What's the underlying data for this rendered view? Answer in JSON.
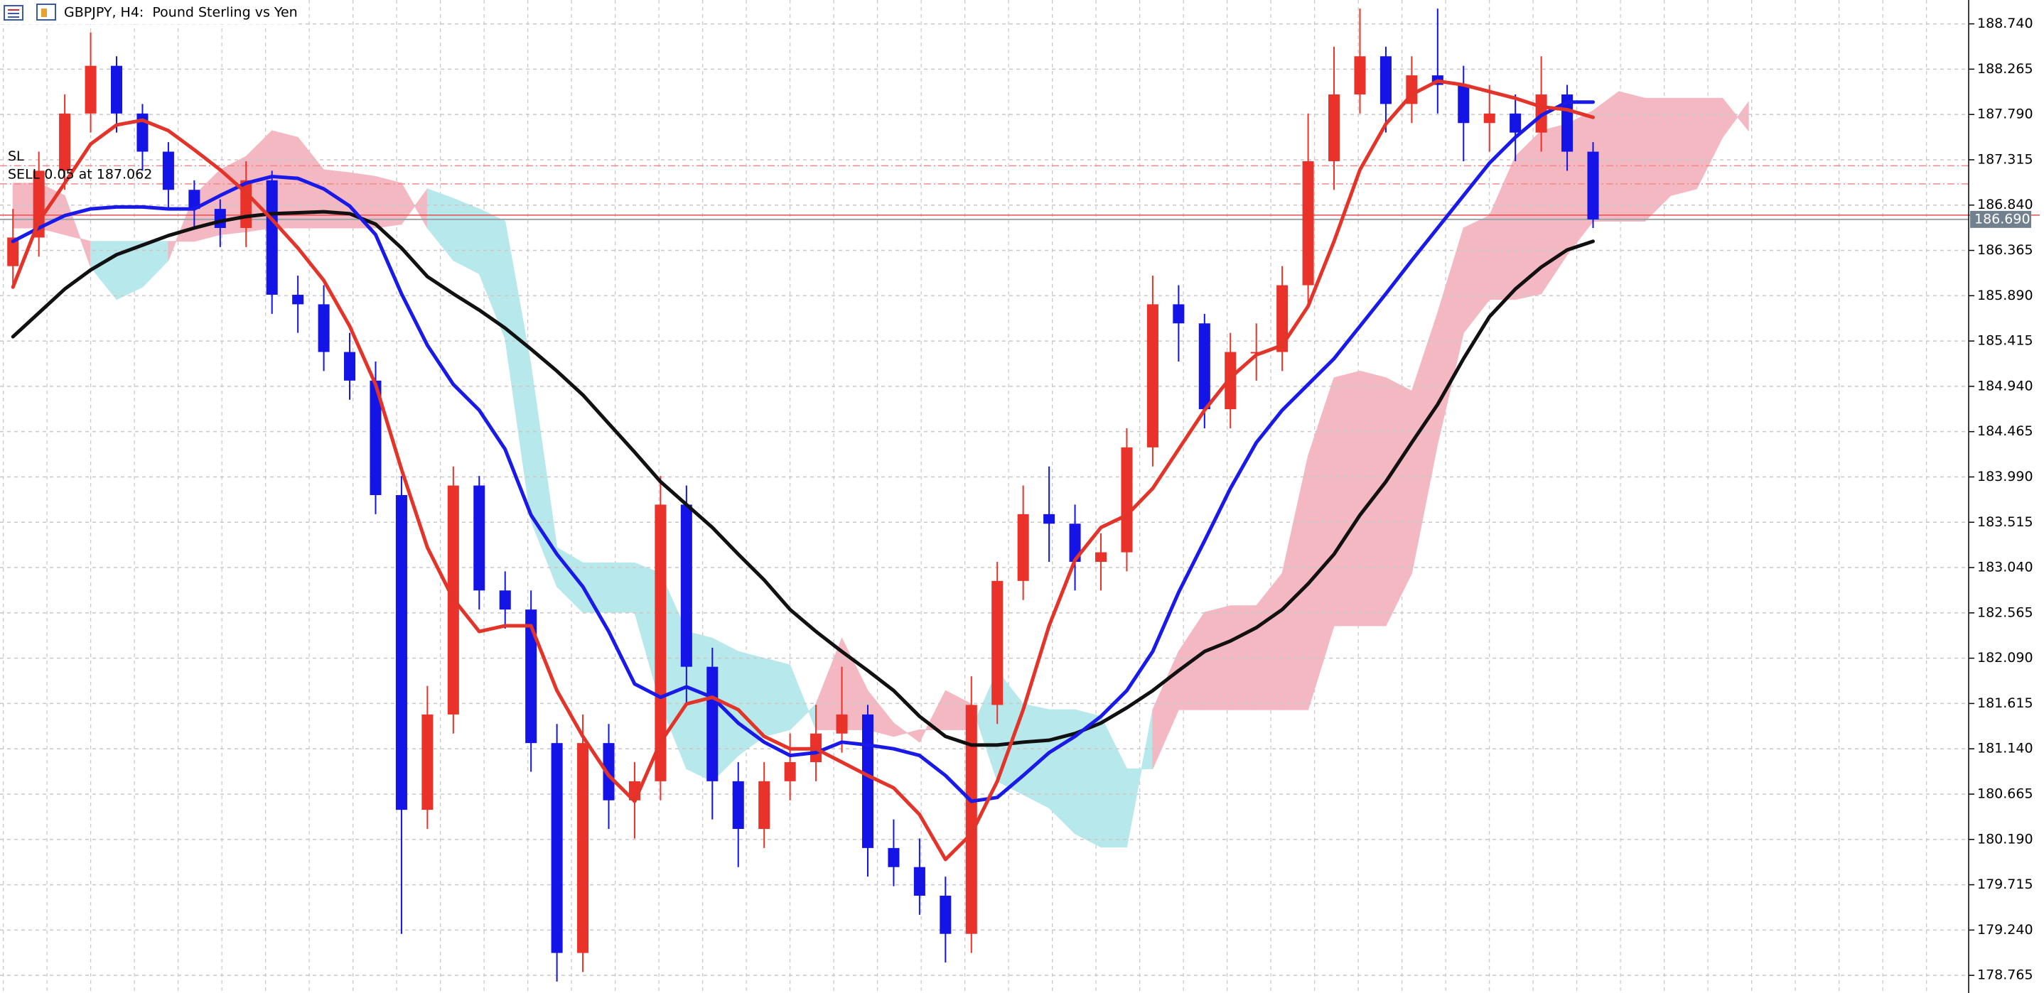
{
  "chart_data": {
    "type": "candlestick",
    "title": "GBPJPY, H4:  Pound Sterling vs Yen",
    "xlim": [
      -0.5,
      75.5
    ],
    "ylim": [
      178.58,
      188.99
    ],
    "yticks": [
      {
        "value": 188.74,
        "label": "188.740"
      },
      188.265,
      {
        "value": 187.79,
        "label": "187.790"
      },
      187.315,
      {
        "value": 186.84,
        "label": "186.840"
      },
      186.365,
      {
        "value": 185.89,
        "label": "185.890"
      },
      185.415,
      {
        "value": 184.94,
        "label": "184.940"
      },
      184.465,
      {
        "value": 183.99,
        "label": "183.990"
      },
      183.515,
      {
        "value": 183.04,
        "label": "183.040"
      },
      182.565,
      {
        "value": 182.09,
        "label": "182.090"
      },
      181.615,
      {
        "value": 181.14,
        "label": "181.140"
      },
      180.665,
      {
        "value": 180.19,
        "label": "180.190"
      },
      179.715,
      {
        "value": 179.24,
        "label": "179.240"
      },
      178.765
    ],
    "grid": true,
    "up_color": "#e8322a",
    "down_color": "#1414e6",
    "open": [
      186.2,
      186.5,
      187.2,
      187.8,
      188.3,
      187.8,
      187.4,
      187.0,
      186.8,
      186.6,
      187.1,
      185.9,
      185.8,
      185.3,
      185.0,
      183.8,
      180.5,
      181.5,
      183.9,
      182.8,
      182.6,
      181.2,
      179.0,
      181.2,
      180.6,
      180.8,
      183.7,
      182.0,
      180.8,
      180.3,
      180.8,
      181.0,
      181.3,
      181.5,
      180.1,
      179.9,
      179.6,
      179.2,
      181.6,
      182.9,
      183.6,
      183.5,
      183.1,
      183.2,
      184.3,
      185.8,
      185.6,
      184.7,
      185.3,
      185.3,
      186.0,
      187.3,
      188.0,
      188.4,
      187.9,
      188.2,
      188.1,
      187.7,
      187.8,
      187.6,
      188.0,
      187.4
    ],
    "high": [
      186.8,
      187.4,
      188.0,
      188.65,
      188.4,
      187.9,
      187.5,
      187.1,
      186.9,
      187.3,
      187.2,
      186.1,
      186.0,
      185.5,
      185.2,
      184.0,
      181.8,
      184.1,
      184.0,
      183.0,
      182.8,
      181.4,
      181.5,
      181.4,
      181.0,
      184.0,
      183.9,
      182.2,
      181.0,
      181.0,
      181.3,
      181.6,
      182.0,
      181.6,
      180.4,
      180.2,
      179.8,
      181.9,
      183.1,
      183.9,
      184.1,
      183.7,
      183.4,
      184.5,
      186.1,
      186.0,
      185.7,
      185.5,
      185.6,
      186.2,
      187.8,
      188.5,
      188.9,
      188.5,
      188.4,
      188.9,
      188.3,
      188.1,
      188.0,
      188.4,
      188.1,
      187.5
    ],
    "low": [
      186.0,
      186.3,
      187.0,
      187.6,
      187.6,
      187.2,
      186.8,
      186.6,
      186.4,
      186.4,
      185.7,
      185.5,
      185.1,
      184.8,
      183.6,
      179.2,
      180.3,
      181.3,
      182.6,
      182.4,
      180.9,
      178.7,
      178.8,
      180.3,
      180.2,
      180.6,
      181.6,
      180.4,
      179.9,
      180.1,
      180.6,
      180.8,
      181.1,
      179.8,
      179.7,
      179.4,
      178.9,
      179.0,
      181.4,
      182.7,
      183.1,
      182.8,
      182.8,
      183.0,
      184.1,
      185.2,
      184.5,
      184.5,
      185.0,
      185.1,
      185.8,
      187.0,
      187.8,
      187.6,
      187.7,
      187.8,
      187.3,
      187.4,
      187.3,
      187.4,
      187.2,
      186.6
    ],
    "close": [
      186.5,
      187.2,
      187.8,
      188.3,
      187.8,
      187.4,
      187.0,
      186.8,
      186.6,
      187.1,
      185.9,
      185.8,
      185.3,
      185.0,
      183.8,
      180.5,
      181.5,
      183.9,
      182.8,
      182.6,
      181.2,
      179.0,
      181.2,
      180.6,
      180.8,
      183.7,
      182.0,
      180.8,
      180.3,
      180.8,
      181.0,
      181.3,
      181.5,
      180.1,
      179.9,
      179.6,
      179.2,
      181.6,
      182.9,
      183.6,
      183.5,
      183.1,
      183.2,
      184.3,
      185.8,
      185.6,
      184.7,
      185.3,
      185.3,
      186.0,
      187.3,
      188.0,
      188.4,
      187.9,
      188.2,
      188.1,
      187.7,
      187.8,
      187.6,
      188.0,
      187.4,
      186.69
    ],
    "lines": [
      {
        "color": "#111111",
        "values": [
          185.46,
          185.71,
          185.96,
          186.16,
          186.32,
          186.42,
          186.52,
          186.6,
          186.67,
          186.72,
          186.75,
          186.76,
          186.77,
          186.75,
          186.64,
          186.39,
          186.09,
          185.91,
          185.74,
          185.55,
          185.33,
          185.1,
          184.85,
          184.55,
          184.25,
          183.94,
          183.7,
          183.46,
          183.18,
          182.91,
          182.6,
          182.37,
          182.16,
          181.96,
          181.75,
          181.48,
          181.27,
          181.18,
          181.18,
          181.21,
          181.23,
          181.3,
          181.41,
          181.57,
          181.75,
          181.96,
          182.16,
          182.27,
          182.41,
          182.6,
          182.87,
          183.18,
          183.59,
          183.94,
          184.35,
          184.75,
          185.23,
          185.67,
          185.96,
          186.19,
          186.37,
          186.46
        ]
      },
      {
        "color": "#1a1ae8",
        "values": [
          186.46,
          186.6,
          186.73,
          186.8,
          186.82,
          186.82,
          186.8,
          186.8,
          186.94,
          187.07,
          187.14,
          187.12,
          187.01,
          186.83,
          186.53,
          185.91,
          185.37,
          184.96,
          184.69,
          184.28,
          183.59,
          183.18,
          182.84,
          182.37,
          181.82,
          181.68,
          181.79,
          181.68,
          181.41,
          181.21,
          181.07,
          181.1,
          181.21,
          181.18,
          181.14,
          181.07,
          180.86,
          180.59,
          180.63,
          180.86,
          181.1,
          181.27,
          181.48,
          181.75,
          182.16,
          182.78,
          183.32,
          183.87,
          184.35,
          184.69,
          184.96,
          185.23,
          185.57,
          185.91,
          186.26,
          186.6,
          186.94,
          187.28,
          187.55,
          187.78,
          187.92,
          187.92
        ]
      },
      {
        "color": "#e3342a",
        "values": [
          185.98,
          186.67,
          187.07,
          187.48,
          187.68,
          187.73,
          187.62,
          187.42,
          187.21,
          186.97,
          186.69,
          186.39,
          186.05,
          185.57,
          184.96,
          184.07,
          183.25,
          182.71,
          182.37,
          182.43,
          182.43,
          181.75,
          181.27,
          180.86,
          180.59,
          181.21,
          181.61,
          181.68,
          181.55,
          181.27,
          181.14,
          181.14,
          181.0,
          180.86,
          180.73,
          180.45,
          179.98,
          180.25,
          180.8,
          181.55,
          182.43,
          183.12,
          183.46,
          183.59,
          183.87,
          184.28,
          184.69,
          185.03,
          185.27,
          185.37,
          185.78,
          186.46,
          187.21,
          187.69,
          188.0,
          188.14,
          188.1,
          188.03,
          187.96,
          187.87,
          187.84,
          187.76
        ]
      }
    ],
    "cloud": {
      "up_color": "#f4b8c3",
      "down_color": "#b6e8ec",
      "span_a": [
        187.07,
        187.07,
        186.94,
        186.19,
        185.85,
        185.98,
        186.26,
        186.94,
        187.21,
        187.35,
        187.62,
        187.55,
        187.21,
        187.18,
        187.14,
        187.07,
        186.6,
        186.26,
        186.12,
        185.44,
        183.53,
        182.84,
        182.57,
        182.57,
        182.57,
        181.61,
        180.93,
        180.8,
        181.07,
        181.27,
        181.34,
        181.61,
        182.3,
        181.75,
        181.41,
        181.21,
        181.75,
        181.61,
        180.8,
        180.66,
        180.52,
        180.25,
        180.11,
        180.11,
        181.55,
        182.16,
        182.57,
        182.64,
        182.64,
        182.98,
        184.21,
        185.03,
        185.1,
        185.03,
        184.89,
        185.71,
        186.6,
        186.73,
        187.35,
        187.62,
        187.69,
        187.83,
        188.03,
        187.96,
        187.96,
        187.96,
        187.96,
        187.62
      ],
      "span_b": [
        186.6,
        186.6,
        186.53,
        186.46,
        186.46,
        186.46,
        186.46,
        186.46,
        186.53,
        186.56,
        186.6,
        186.6,
        186.6,
        186.6,
        186.6,
        186.64,
        187.01,
        186.91,
        186.8,
        186.67,
        185.16,
        183.25,
        183.09,
        183.09,
        183.09,
        182.98,
        182.37,
        182.3,
        182.16,
        182.09,
        182.02,
        181.34,
        181.34,
        181.34,
        181.27,
        181.34,
        181.34,
        181.34,
        181.96,
        181.61,
        181.55,
        181.55,
        181.48,
        180.93,
        180.93,
        181.55,
        181.55,
        181.55,
        181.55,
        181.55,
        181.55,
        182.43,
        182.43,
        182.43,
        182.98,
        184.34,
        185.5,
        185.85,
        185.85,
        185.91,
        186.32,
        186.67,
        186.67,
        186.67,
        186.94,
        187.01,
        187.55,
        187.92
      ]
    },
    "levels": [
      {
        "label": "SL",
        "value": 187.252,
        "color": "#f08a8a"
      },
      {
        "label": "SELL 0.05 at 187.062",
        "value": 187.062,
        "color": "#f08a8a"
      }
    ],
    "last_price": {
      "value": 186.69,
      "label": "186.690"
    }
  }
}
